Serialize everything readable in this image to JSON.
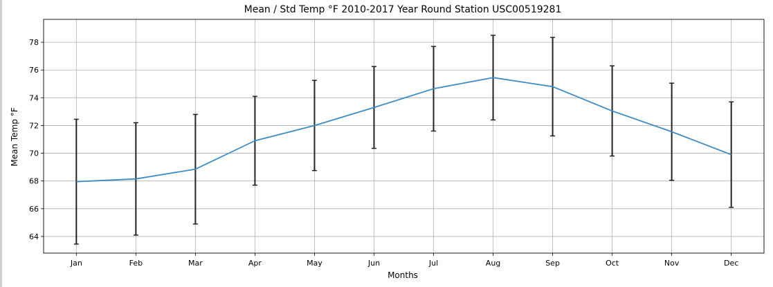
{
  "chart_data": {
    "type": "line",
    "title": "Mean / Std Temp °F 2010-2017 Year Round Station USC00519281",
    "xlabel": "Months",
    "ylabel": "Mean Temp °F",
    "categories": [
      "Jan",
      "Feb",
      "Mar",
      "Apr",
      "May",
      "Jun",
      "Jul",
      "Aug",
      "Sep",
      "Oct",
      "Nov",
      "Dec"
    ],
    "series": [
      {
        "values": [
          67.95,
          68.15,
          68.85,
          70.9,
          72.0,
          73.3,
          74.65,
          75.45,
          74.8,
          73.05,
          71.55,
          69.9
        ],
        "error": [
          4.5,
          4.05,
          3.95,
          3.2,
          3.25,
          2.95,
          3.05,
          3.05,
          3.55,
          3.25,
          3.5,
          3.8
        ]
      }
    ],
    "yticks": [
      64,
      66,
      68,
      70,
      72,
      74,
      76,
      78
    ],
    "ylim": [
      62.8,
      79.65
    ],
    "grid": true,
    "colors": {
      "line": "#3d8bc4",
      "errorbar": "#222222",
      "grid": "#b0b0b0",
      "axis": "#000000"
    }
  }
}
